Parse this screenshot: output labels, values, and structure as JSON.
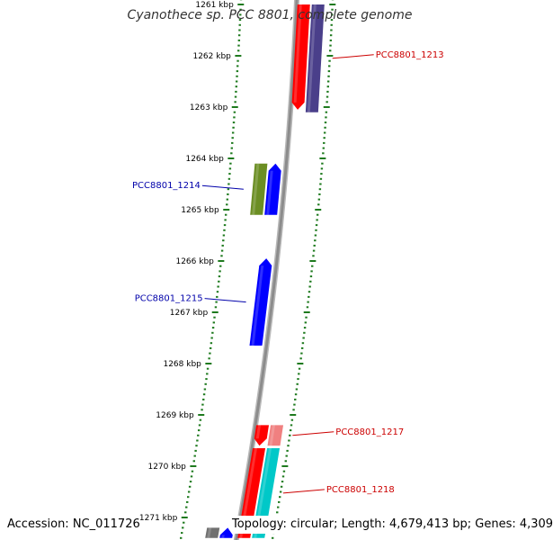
{
  "title": "Cyanothece sp. PCC 8801, complete genome",
  "footer": {
    "accession": "Accession: NC_011726",
    "summary": "Topology: circular; Length: 4,679,413 bp; Genes: 4,309"
  },
  "colors": {
    "backbone": "#8c8c8c",
    "ticks": "#1e7a1e",
    "label_forward": "#cc0000",
    "label_reverse": "#0000aa"
  },
  "ticks": [
    "1261 kbp",
    "1262 kbp",
    "1263 kbp",
    "1264 kbp",
    "1265 kbp",
    "1266 kbp",
    "1267 kbp",
    "1268 kbp",
    "1269 kbp",
    "1270 kbp",
    "1271 kbp"
  ],
  "genes": [
    {
      "id": "g1213a",
      "kb_start": 1261.0,
      "kb_end": 1263.05,
      "track": "o1",
      "color": "#ff0000",
      "arrow": "down",
      "label": ""
    },
    {
      "id": "g1213",
      "kb_start": 1261.0,
      "kb_end": 1263.1,
      "track": "o2",
      "color": "#4a3f8a",
      "arrow": "none",
      "label": "PCC8801_1213",
      "label_side": "right",
      "label_color": "#cc0000"
    },
    {
      "id": "g1214a",
      "kb_start": 1264.1,
      "kb_end": 1265.1,
      "track": "i2",
      "color": "#6b8e23",
      "arrow": "none",
      "label": "PCC8801_1214",
      "label_side": "left",
      "label_color": "#0000aa"
    },
    {
      "id": "g1214b",
      "kb_start": 1264.1,
      "kb_end": 1265.1,
      "track": "i1",
      "color": "#0000ff",
      "arrow": "up",
      "label": ""
    },
    {
      "id": "g1215",
      "kb_start": 1265.95,
      "kb_end": 1267.65,
      "track": "i1",
      "color": "#0000ff",
      "arrow": "up",
      "label": "PCC8801_1215",
      "label_side": "left",
      "label_color": "#0000aa"
    },
    {
      "id": "g1216",
      "kb_start": 1269.2,
      "kb_end": 1269.6,
      "track": "o1",
      "color": "#ff0000",
      "arrow": "down",
      "label": ""
    },
    {
      "id": "g1217",
      "kb_start": 1269.2,
      "kb_end": 1269.6,
      "track": "o2",
      "color": "#f08080",
      "arrow": "none",
      "label": "PCC8801_1217",
      "label_side": "right",
      "label_color": "#cc0000"
    },
    {
      "id": "g1218a",
      "kb_start": 1269.65,
      "kb_end": 1271.4,
      "track": "o1",
      "color": "#ff0000",
      "arrow": "none",
      "label": ""
    },
    {
      "id": "g1218",
      "kb_start": 1269.65,
      "kb_end": 1271.4,
      "track": "o2",
      "color": "#00c8c8",
      "arrow": "none",
      "label": "PCC8801_1218",
      "label_side": "right",
      "label_color": "#cc0000"
    },
    {
      "id": "gx1",
      "kb_start": 1271.2,
      "kb_end": 1271.4,
      "track": "i2",
      "color": "#707070",
      "arrow": "none",
      "label": ""
    },
    {
      "id": "gx2",
      "kb_start": 1271.2,
      "kb_end": 1271.4,
      "track": "i1",
      "color": "#0000ff",
      "arrow": "up",
      "label": ""
    }
  ]
}
